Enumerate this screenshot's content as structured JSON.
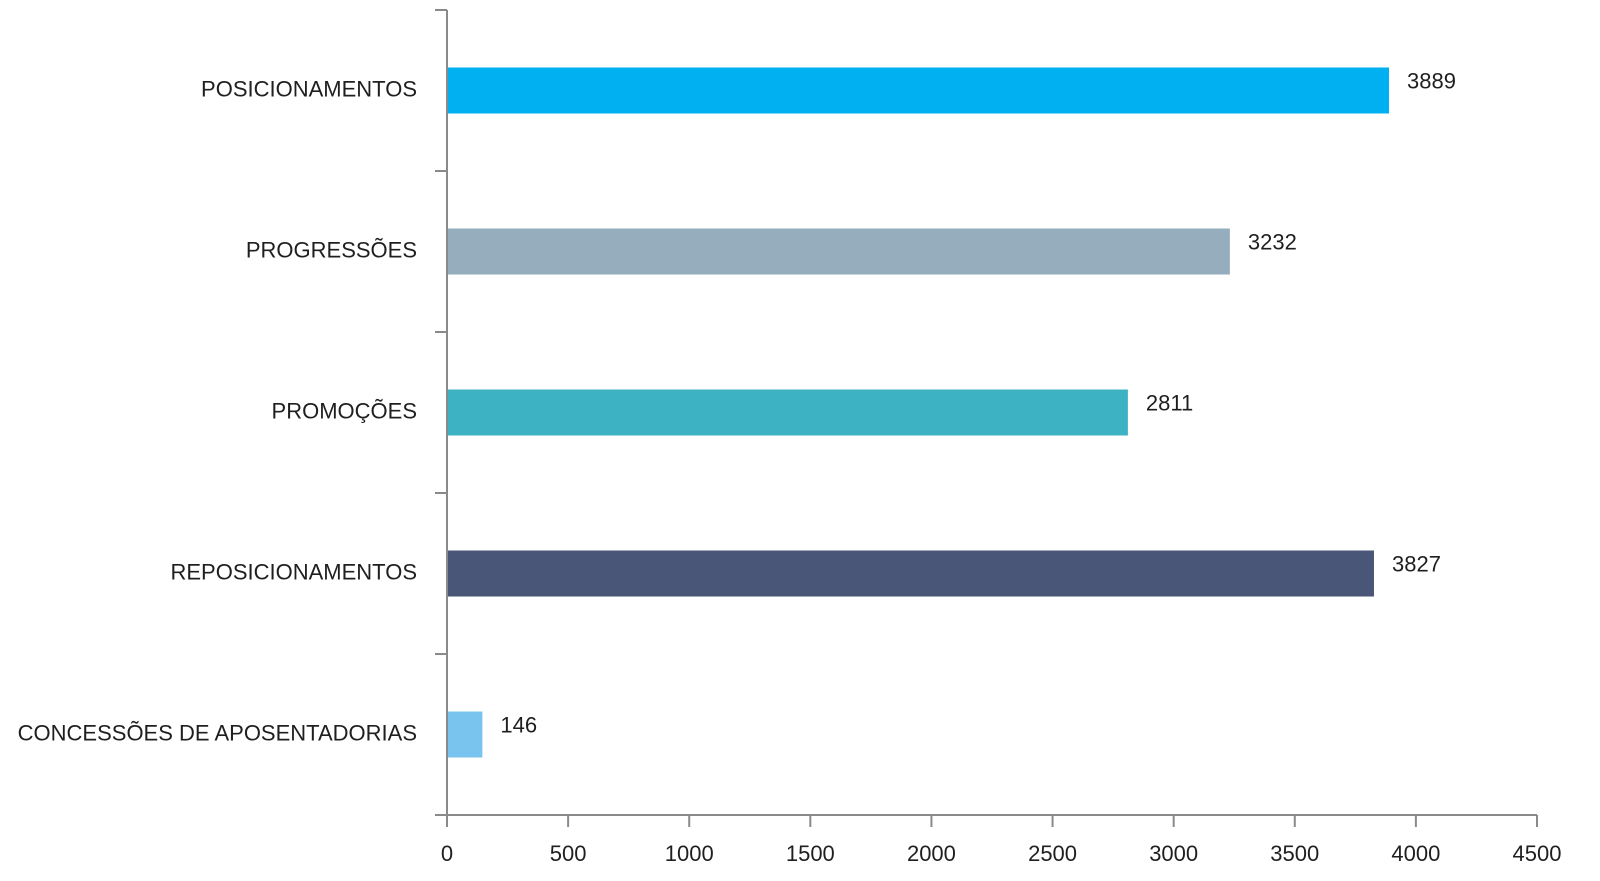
{
  "chart_data": {
    "type": "bar",
    "orientation": "horizontal",
    "title": "",
    "xlabel": "",
    "ylabel": "",
    "categories": [
      "POSICIONAMENTOS",
      "PROGRESSÕES",
      "PROMOÇÕES",
      "REPOSICIONAMENTOS",
      "CONCESSÕES DE APOSENTADORIAS"
    ],
    "values": [
      3889,
      3232,
      2811,
      3827,
      146
    ],
    "colors": [
      "#00b0f0",
      "#96adbd",
      "#3cb2c3",
      "#4a5677",
      "#79c4ee"
    ],
    "xlim": [
      0,
      4500
    ],
    "xticks": [
      0,
      500,
      1000,
      1500,
      2000,
      2500,
      3000,
      3500,
      4000,
      4500
    ],
    "grid": false,
    "legend": "none",
    "data_labels": true
  }
}
